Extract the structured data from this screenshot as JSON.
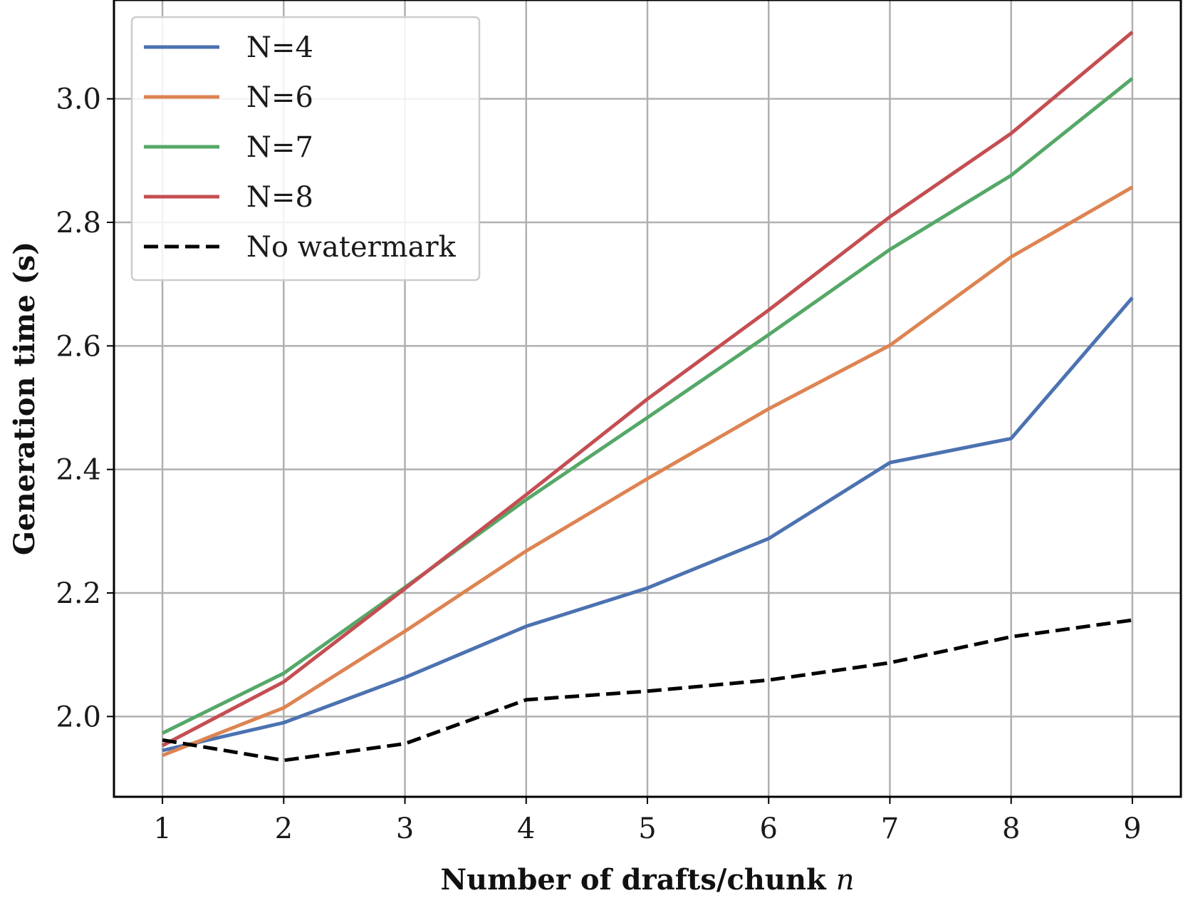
{
  "chart_data": {
    "type": "line",
    "title": "",
    "xlabel": "Number of drafts/chunk",
    "xlabel_var": "n",
    "ylabel": "Generation time (s)",
    "x": [
      1,
      2,
      3,
      4,
      5,
      6,
      7,
      8,
      9
    ],
    "xlim": [
      0.6,
      9.4
    ],
    "ylim": [
      1.87,
      3.16
    ],
    "xticks": [
      "1",
      "2",
      "3",
      "4",
      "5",
      "6",
      "7",
      "8",
      "9"
    ],
    "yticks": [
      "2.0",
      "2.2",
      "2.4",
      "2.6",
      "2.8",
      "3.0"
    ],
    "grid": true,
    "legend_position": "upper-left",
    "series": [
      {
        "name": "N=4",
        "color": "#4c72b0",
        "style": "solid",
        "values": [
          1.945,
          1.99,
          2.063,
          2.146,
          2.208,
          2.288,
          2.411,
          2.45,
          2.678
        ]
      },
      {
        "name": "N=6",
        "color": "#dd8452",
        "style": "solid",
        "values": [
          1.937,
          2.014,
          2.138,
          2.268,
          2.385,
          2.498,
          2.601,
          2.744,
          2.857
        ]
      },
      {
        "name": "N=7",
        "color": "#55a868",
        "style": "solid",
        "values": [
          1.973,
          2.07,
          2.209,
          2.351,
          2.484,
          2.618,
          2.756,
          2.876,
          3.033
        ]
      },
      {
        "name": "N=8",
        "color": "#c44e52",
        "style": "solid",
        "values": [
          1.953,
          2.056,
          2.207,
          2.359,
          2.514,
          2.658,
          2.809,
          2.944,
          3.108
        ]
      },
      {
        "name": "No watermark",
        "color": "#000000",
        "style": "dashed",
        "values": [
          1.962,
          1.929,
          1.956,
          2.027,
          2.041,
          2.059,
          2.087,
          2.129,
          2.156
        ]
      }
    ]
  }
}
